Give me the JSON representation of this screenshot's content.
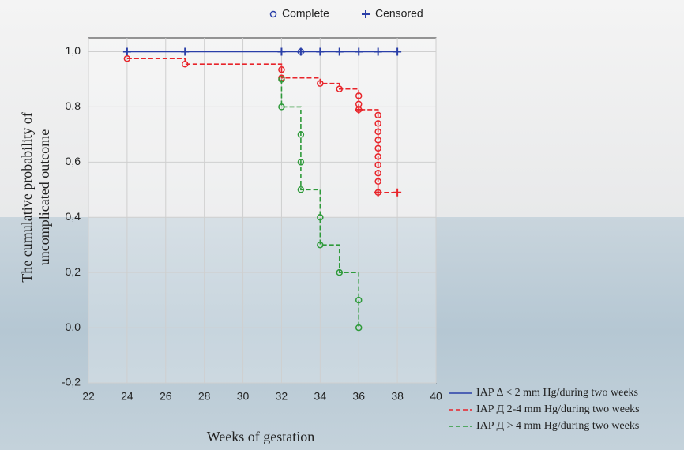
{
  "chart_data": {
    "type": "step",
    "ylabel": [
      "The cumulative probability of",
      "uncomplicated outcome"
    ],
    "xlabel": "Weeks of gestation",
    "marker_legend": [
      "Complete",
      "Censored"
    ],
    "xlim": [
      22,
      40
    ],
    "xticks": [
      22,
      24,
      26,
      28,
      30,
      32,
      34,
      36,
      38,
      40
    ],
    "ylim": [
      -0.2,
      1.05
    ],
    "yticks": [
      {
        "value": -0.2,
        "label": "-0,2"
      },
      {
        "value": 0,
        "label": "0,0"
      },
      {
        "value": 0.2,
        "label": "0,2"
      },
      {
        "value": 0.4,
        "label": "0,4"
      },
      {
        "value": 0.6,
        "label": "0,6"
      },
      {
        "value": 0.8,
        "label": "0,8"
      },
      {
        "value": 1,
        "label": "1,0"
      }
    ],
    "grid": true,
    "series": [
      {
        "name": "IAP Δ < 2 mm Hg/during two weeks",
        "color": "#2a3fa8",
        "dash": false,
        "x": [
          24,
          38
        ],
        "values": [
          1,
          1
        ],
        "complete_x": [
          33
        ],
        "complete_values": [
          1
        ],
        "censored_x": [
          24,
          27,
          32,
          33,
          34,
          35,
          36,
          37,
          38
        ],
        "censored_values": [
          1,
          1,
          1,
          1,
          1,
          1,
          1,
          1,
          1
        ]
      },
      {
        "name": "IAP Д 2-4 mm Hg/during two weeks",
        "color": "#e8242a",
        "dash": true,
        "x": [
          24,
          27,
          27,
          32,
          32,
          32,
          34,
          34,
          35,
          35,
          36,
          36,
          37,
          37,
          38
        ],
        "values": [
          0.975,
          0.975,
          0.955,
          0.955,
          0.935,
          0.905,
          0.905,
          0.885,
          0.885,
          0.865,
          0.865,
          0.79,
          0.79,
          0.49,
          0.49
        ],
        "complete_x": [
          24,
          27,
          32,
          32,
          34,
          35,
          36,
          36,
          36,
          37,
          37,
          37,
          37,
          37,
          37,
          37,
          37,
          37,
          37
        ],
        "complete_values": [
          0.975,
          0.955,
          0.935,
          0.905,
          0.885,
          0.865,
          0.84,
          0.81,
          0.79,
          0.77,
          0.74,
          0.71,
          0.68,
          0.65,
          0.62,
          0.59,
          0.56,
          0.53,
          0.49
        ],
        "censored_x": [
          36,
          37,
          38
        ],
        "censored_values": [
          0.79,
          0.49,
          0.49
        ]
      },
      {
        "name": "IAP Д > 4 mm Hg/during two weeks",
        "color": "#2e9a3a",
        "dash": true,
        "x": [
          32,
          32,
          33,
          33,
          34,
          34,
          35,
          35,
          36,
          36
        ],
        "values": [
          0.9,
          0.8,
          0.8,
          0.5,
          0.5,
          0.3,
          0.3,
          0.2,
          0.2,
          0
        ],
        "complete_x": [
          32,
          32,
          33,
          33,
          33,
          34,
          34,
          35,
          36,
          36
        ],
        "complete_values": [
          0.9,
          0.8,
          0.7,
          0.6,
          0.5,
          0.4,
          0.3,
          0.2,
          0.1,
          0
        ],
        "censored_x": [],
        "censored_values": []
      }
    ]
  }
}
